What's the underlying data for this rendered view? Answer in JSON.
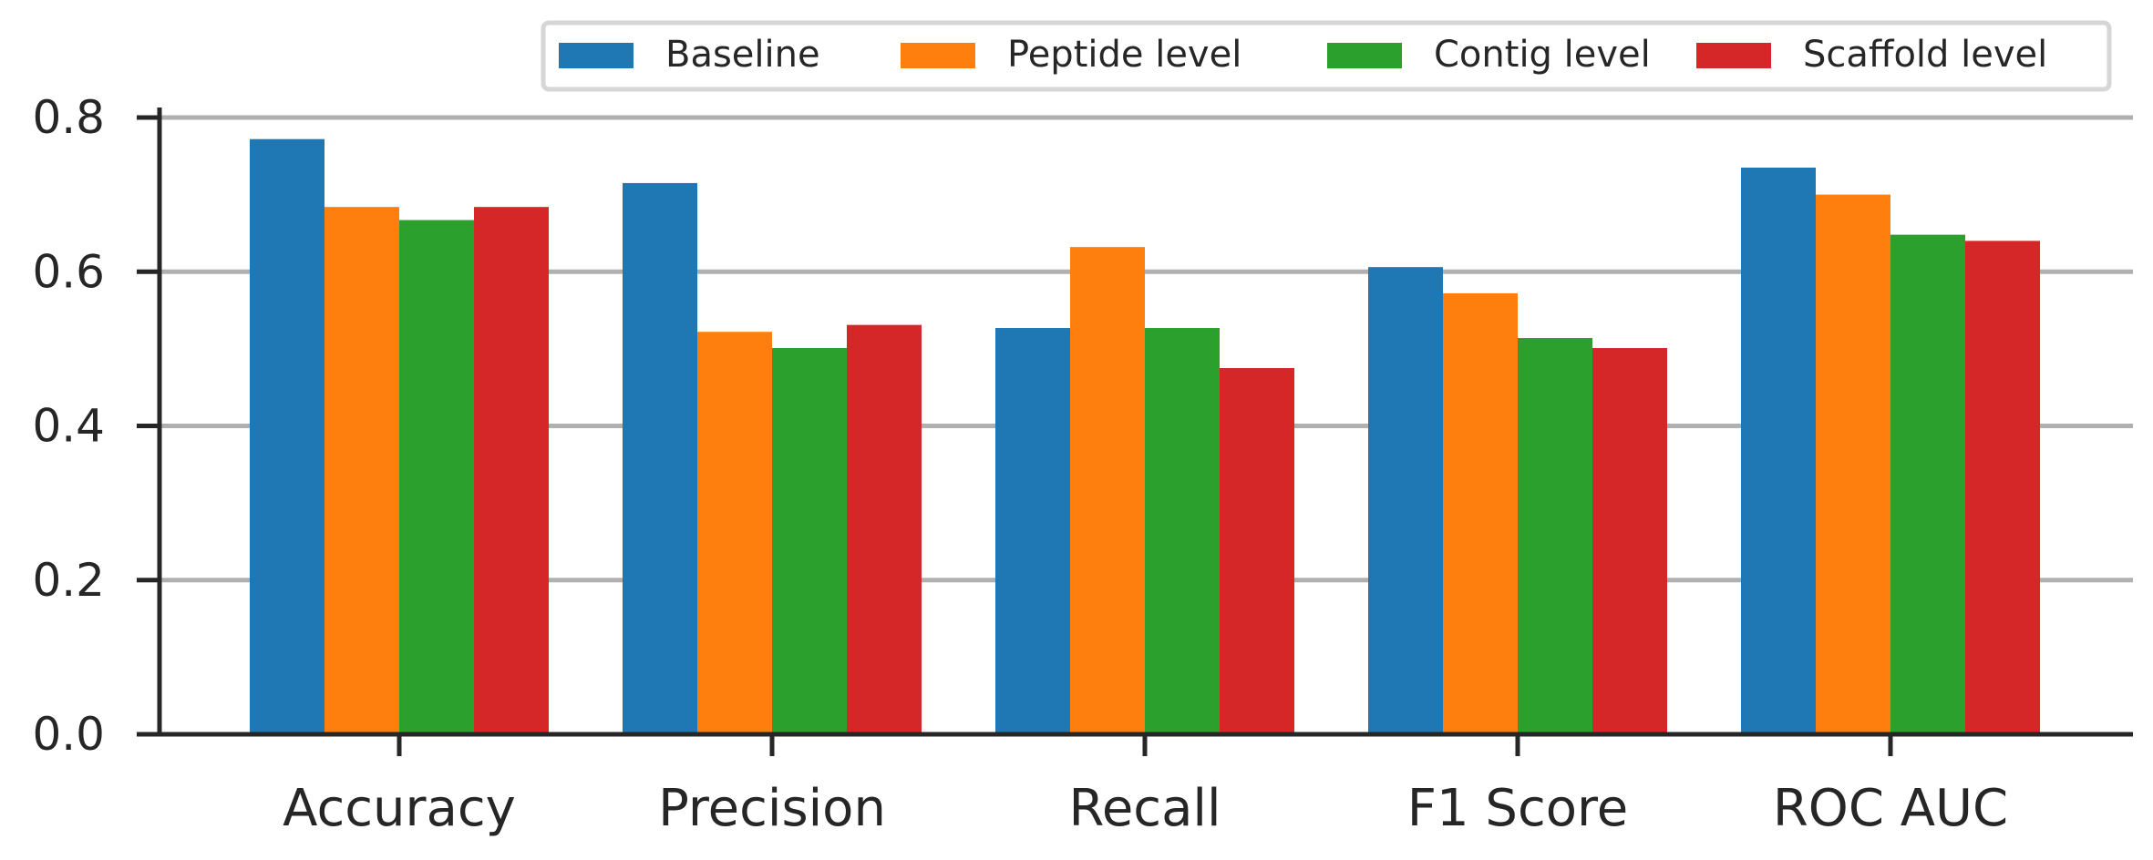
{
  "chart_data": {
    "type": "bar",
    "title": "",
    "xlabel": "",
    "ylabel": "",
    "categories": [
      "Accuracy",
      "Precision",
      "Recall",
      "F1 Score",
      "ROC AUC"
    ],
    "series": [
      {
        "name": "Baseline",
        "color": "#1f77b4",
        "values": [
          0.772,
          0.715,
          0.527,
          0.606,
          0.735
        ]
      },
      {
        "name": "Peptide level",
        "color": "#ff7f0e",
        "values": [
          0.684,
          0.522,
          0.632,
          0.572,
          0.7
        ]
      },
      {
        "name": "Contig level",
        "color": "#2ca02c",
        "values": [
          0.667,
          0.501,
          0.527,
          0.514,
          0.648
        ]
      },
      {
        "name": "Scaffold level",
        "color": "#d62728",
        "values": [
          0.684,
          0.531,
          0.475,
          0.501,
          0.64
        ]
      }
    ],
    "ylim": [
      0,
      0.8
    ],
    "yticks": [
      "0.0",
      "0.2",
      "0.4",
      "0.6",
      "0.8"
    ],
    "grid": true,
    "legend_position": "top-right"
  }
}
